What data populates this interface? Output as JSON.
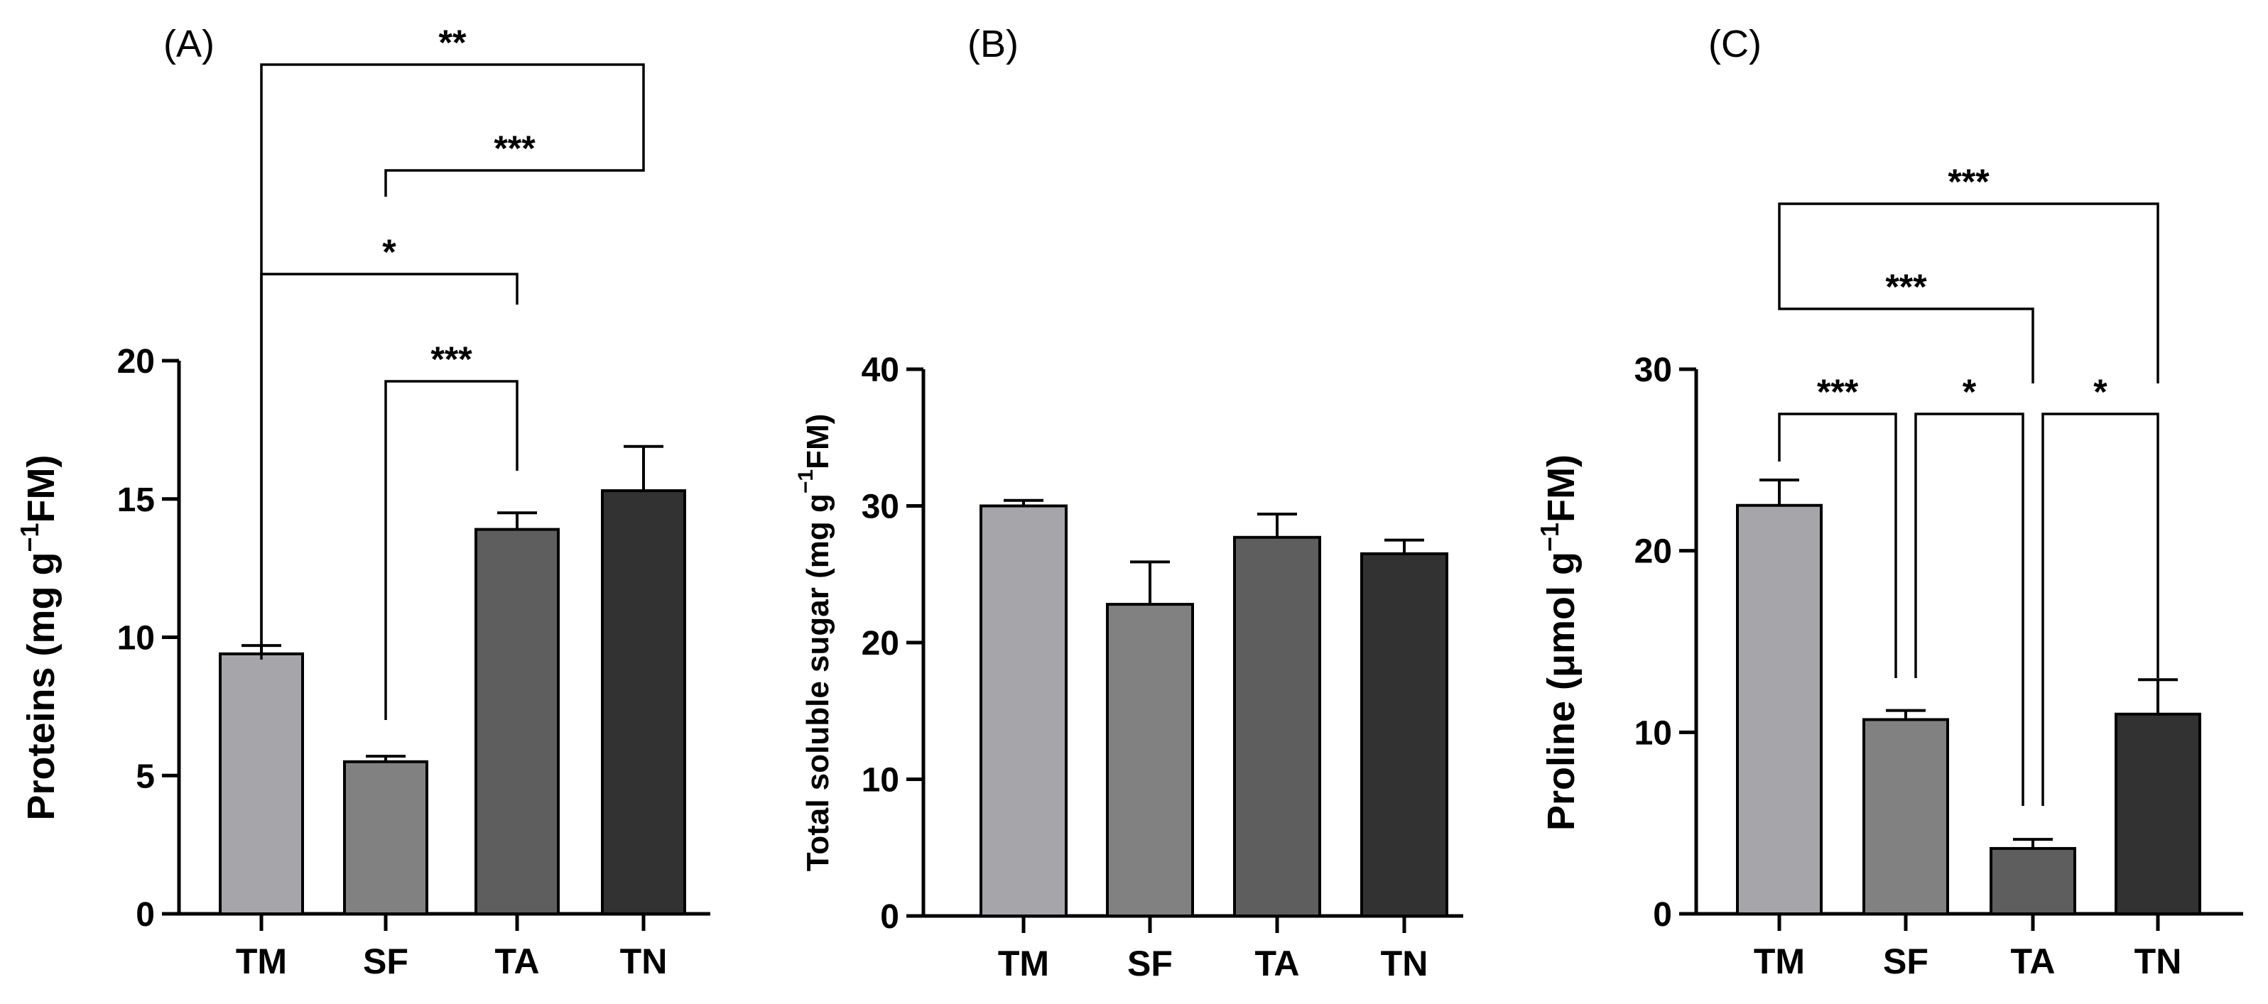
{
  "chart_data": [
    {
      "type": "bar",
      "panel_label": "(A)",
      "categories": [
        "TM",
        "SF",
        "TA",
        "TN"
      ],
      "values": [
        9.4,
        5.5,
        13.9,
        15.3
      ],
      "errors": [
        0.3,
        0.2,
        0.6,
        1.6
      ],
      "colors": [
        "#a5a5aa",
        "#818181",
        "#5e5e5e",
        "#323232"
      ],
      "ylabel_main": "Proteins (mg g",
      "ylabel_sup": "−1",
      "ylabel_tail": "FM)",
      "ylim": [
        0,
        20
      ],
      "yticks": [
        "0",
        "5",
        "10",
        "15",
        "20"
      ],
      "significance": [
        {
          "from": "TM",
          "to": "TN",
          "label": "**"
        },
        {
          "from": "SF",
          "to": "TN",
          "label": "***"
        },
        {
          "from": "TM",
          "to": "TA",
          "label": "*"
        },
        {
          "from": "SF",
          "to": "TA",
          "label": "***"
        }
      ]
    },
    {
      "type": "bar",
      "panel_label": "(B)",
      "categories": [
        "TM",
        "SF",
        "TA",
        "TN"
      ],
      "values": [
        30.0,
        22.8,
        27.7,
        26.5
      ],
      "errors": [
        0.4,
        3.1,
        1.7,
        1.0
      ],
      "colors": [
        "#a5a5aa",
        "#818181",
        "#5e5e5e",
        "#323232"
      ],
      "ylabel_main": "Total soluble sugar (mg g",
      "ylabel_sup": "−1",
      "ylabel_tail": "FM)",
      "ylim": [
        0,
        40
      ],
      "yticks": [
        "0",
        "10",
        "20",
        "30",
        "40"
      ],
      "significance": []
    },
    {
      "type": "bar",
      "panel_label": "(C)",
      "categories": [
        "TM",
        "SF",
        "TA",
        "TN"
      ],
      "values": [
        22.5,
        10.7,
        3.6,
        11.0
      ],
      "errors": [
        1.4,
        0.5,
        0.5,
        1.9
      ],
      "colors": [
        "#a5a5aa",
        "#818181",
        "#5e5e5e",
        "#323232"
      ],
      "ylabel_main": "Proline (μmol g",
      "ylabel_sup": "−1",
      "ylabel_tail": "FM)",
      "ylim": [
        0,
        30
      ],
      "yticks": [
        "0",
        "10",
        "20",
        "30"
      ],
      "significance": [
        {
          "from": "TM",
          "to": "TN",
          "label": "***"
        },
        {
          "from": "TM",
          "to": "TA",
          "label": "***"
        },
        {
          "from": "TM",
          "to": "SF",
          "label": "***"
        },
        {
          "from": "SF",
          "to": "TA",
          "label": "*"
        },
        {
          "from": "TA",
          "to": "TN",
          "label": "*"
        }
      ]
    }
  ]
}
